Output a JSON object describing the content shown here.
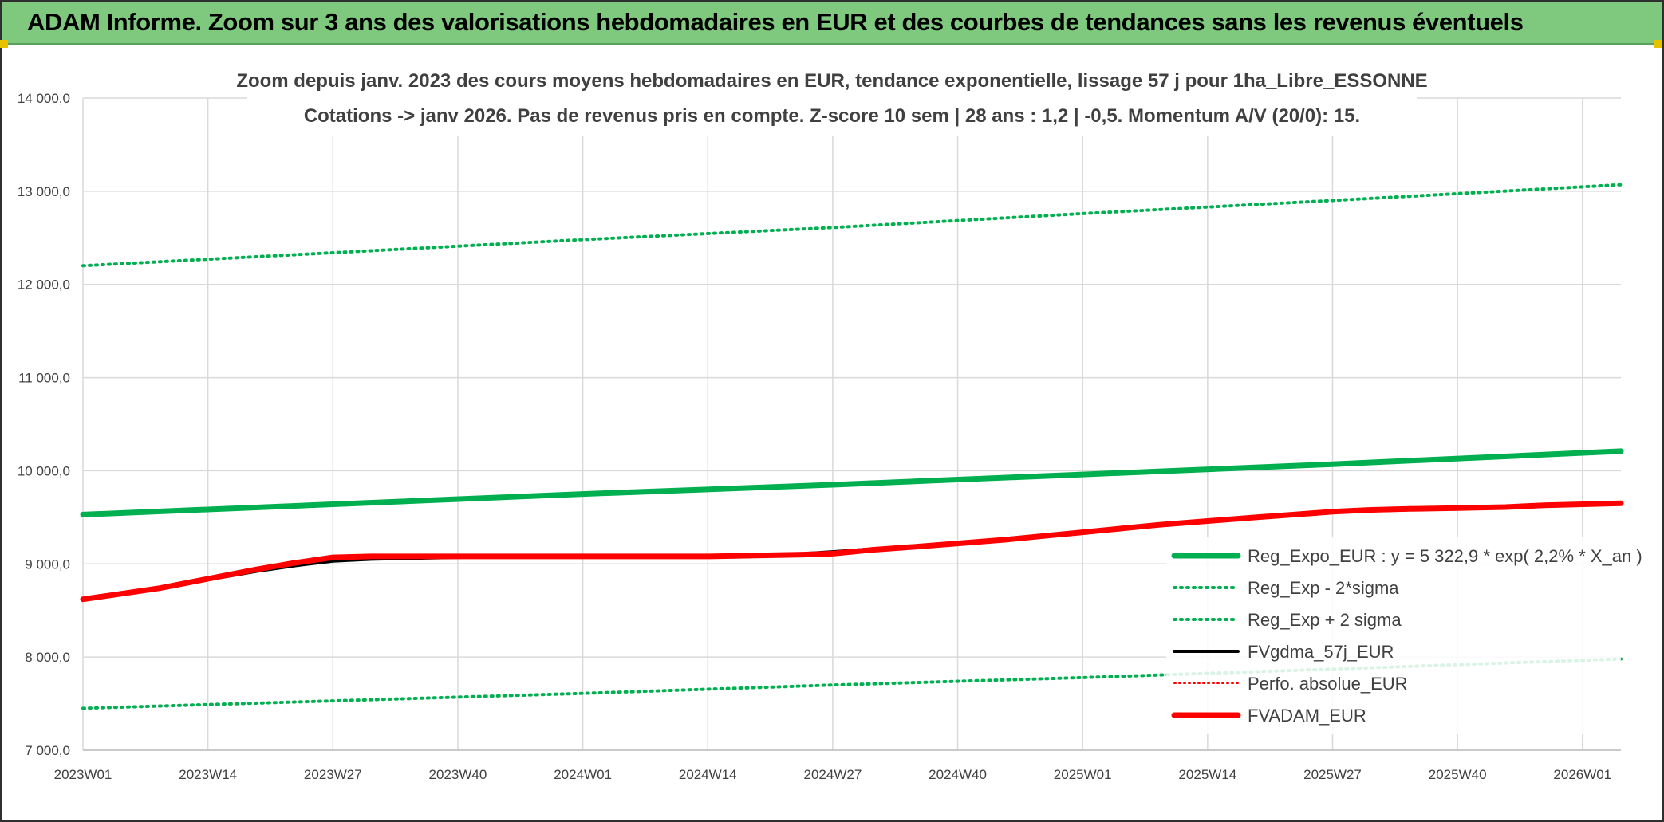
{
  "banner": {
    "title": "ADAM Informe. Zoom sur 3 ans des valorisations hebdomadaires en EUR et des courbes de tendances sans les revenus éventuels"
  },
  "colors": {
    "banner_bg": "#7fc97f",
    "green": "#00b050",
    "black": "#000000",
    "red": "#ff0000",
    "grid": "#d9d9d9",
    "text": "#404040"
  },
  "chart_data": {
    "type": "line",
    "title_line1": "Zoom depuis janv. 2023 des cours moyens hebdomadaires en EUR, tendance exponentielle, lissage 57 j pour 1ha_Libre_ESSONNE",
    "title_line2": "Cotations -> janv 2026. Pas de revenus pris en compte. Z-score 10 sem | 28 ans : 1,2 | -0,5. Momentum A/V (20/0): 15.",
    "xlabel": "",
    "ylabel": "",
    "ylim": [
      7000,
      14000
    ],
    "yticks": [
      7000,
      8000,
      9000,
      10000,
      11000,
      12000,
      13000,
      14000
    ],
    "ytick_labels": [
      "7 000,0",
      "8 000,0",
      "9 000,0",
      "10 000,0",
      "11 000,0",
      "12 000,0",
      "13 000,0",
      "14 000,0"
    ],
    "x_tick_labels": [
      "2023W01",
      "2023W14",
      "2023W27",
      "2023W40",
      "2024W01",
      "2024W14",
      "2024W27",
      "2024W40",
      "2025W01",
      "2025W14",
      "2025W27",
      "2025W40",
      "2026W01"
    ],
    "x_tick_index": [
      0,
      13,
      26,
      39,
      52,
      65,
      78,
      91,
      104,
      117,
      130,
      143,
      156
    ],
    "x_max_index": 160,
    "grid": true,
    "legend_position": "bottom-right",
    "series": [
      {
        "name": "Reg_Expo_EUR : y = 5 322,9 * exp( 2,2% *  X_an )",
        "color": "#00b050",
        "style": "solid-thick",
        "x": [
          0,
          26,
          52,
          78,
          104,
          130,
          160
        ],
        "values": [
          9530,
          9640,
          9750,
          9850,
          9960,
          10070,
          10210
        ]
      },
      {
        "name": "Reg_Exp - 2*sigma",
        "color": "#00b050",
        "style": "dotted",
        "x": [
          0,
          26,
          52,
          78,
          104,
          130,
          160
        ],
        "values": [
          7450,
          7530,
          7610,
          7700,
          7780,
          7870,
          7980
        ]
      },
      {
        "name": "Reg_Exp + 2 sigma",
        "color": "#00b050",
        "style": "dotted",
        "x": [
          0,
          26,
          52,
          78,
          104,
          130,
          160
        ],
        "values": [
          12200,
          12340,
          12480,
          12610,
          12760,
          12900,
          13070
        ]
      },
      {
        "name": "FVgdma_57j_EUR",
        "color": "#000000",
        "style": "solid",
        "x": [
          0,
          8,
          13,
          18,
          22,
          26,
          30,
          34,
          39,
          45,
          52,
          58,
          65,
          70,
          75,
          78,
          82,
          86,
          91,
          96,
          100,
          104,
          108,
          112,
          117,
          122,
          126,
          130,
          134,
          138,
          143,
          148,
          152,
          156,
          160
        ],
        "values": [
          8620,
          8740,
          8830,
          8920,
          8980,
          9030,
          9050,
          9060,
          9070,
          9080,
          9080,
          9080,
          9090,
          9100,
          9110,
          9130,
          9160,
          9190,
          9220,
          9260,
          9300,
          9340,
          9370,
          9410,
          9450,
          9490,
          9520,
          9550,
          9570,
          9580,
          9600,
          9610,
          9620,
          9640,
          9650
        ]
      },
      {
        "name": "Perfo. absolue_EUR",
        "color": "#ff0000",
        "style": "dotted-thin",
        "x": [],
        "values": []
      },
      {
        "name": "FVADAM_EUR",
        "color": "#ff0000",
        "style": "solid-thick",
        "x": [
          0,
          8,
          13,
          18,
          22,
          26,
          30,
          34,
          39,
          45,
          52,
          58,
          65,
          70,
          75,
          78,
          82,
          86,
          91,
          96,
          100,
          104,
          108,
          112,
          117,
          122,
          126,
          130,
          134,
          138,
          143,
          148,
          152,
          156,
          160
        ],
        "values": [
          8620,
          8740,
          8840,
          8940,
          9010,
          9070,
          9080,
          9080,
          9080,
          9080,
          9080,
          9080,
          9080,
          9090,
          9100,
          9110,
          9150,
          9180,
          9220,
          9260,
          9300,
          9340,
          9380,
          9420,
          9460,
          9500,
          9530,
          9560,
          9580,
          9590,
          9600,
          9610,
          9630,
          9640,
          9650
        ]
      }
    ]
  }
}
